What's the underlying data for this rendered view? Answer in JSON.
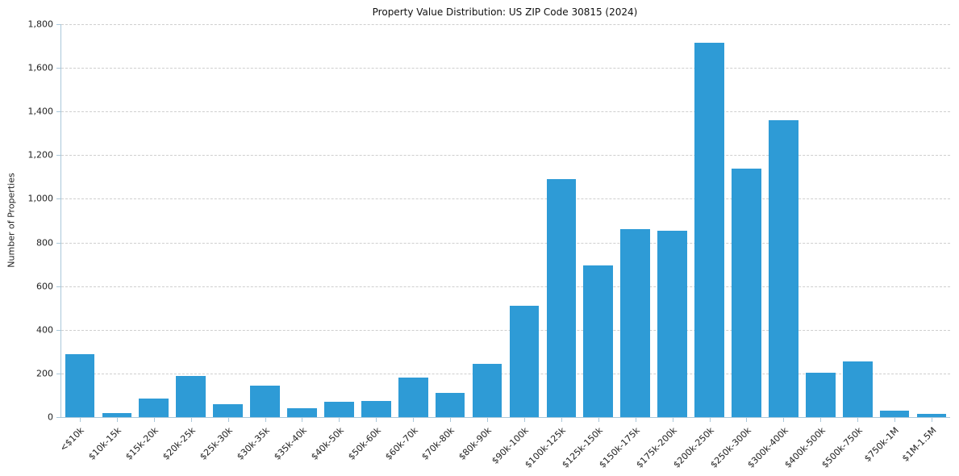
{
  "chart_data": {
    "type": "bar",
    "title": "Property Value Distribution: US ZIP Code 30815 (2024)",
    "xlabel": "",
    "ylabel": "Number of Properties",
    "ylim": [
      0,
      1800
    ],
    "ytick_step": 200,
    "grid": "horizontal-dashed",
    "legend": "none",
    "categories": [
      "<$10k",
      "$10k-15k",
      "$15k-20k",
      "$20k-25k",
      "$25k-30k",
      "$30k-35k",
      "$35k-40k",
      "$40k-50k",
      "$50k-60k",
      "$60k-70k",
      "$70k-80k",
      "$80k-90k",
      "$90k-100k",
      "$100k-125k",
      "$125k-150k",
      "$150k-175k",
      "$175k-200k",
      "$200k-250k",
      "$250k-300k",
      "$300k-400k",
      "$400k-500k",
      "$500k-750k",
      "$750k-1M",
      "$1M-1.5M"
    ],
    "values": [
      290,
      20,
      85,
      190,
      60,
      145,
      40,
      70,
      75,
      180,
      110,
      245,
      510,
      1090,
      695,
      860,
      855,
      1715,
      1140,
      1360,
      205,
      255,
      30,
      15
    ]
  },
  "colors": {
    "bar": "#2e9bd6",
    "axis": "#aac8da",
    "grid": "#cfcfcf",
    "text": "#222222",
    "background": "#ffffff"
  }
}
